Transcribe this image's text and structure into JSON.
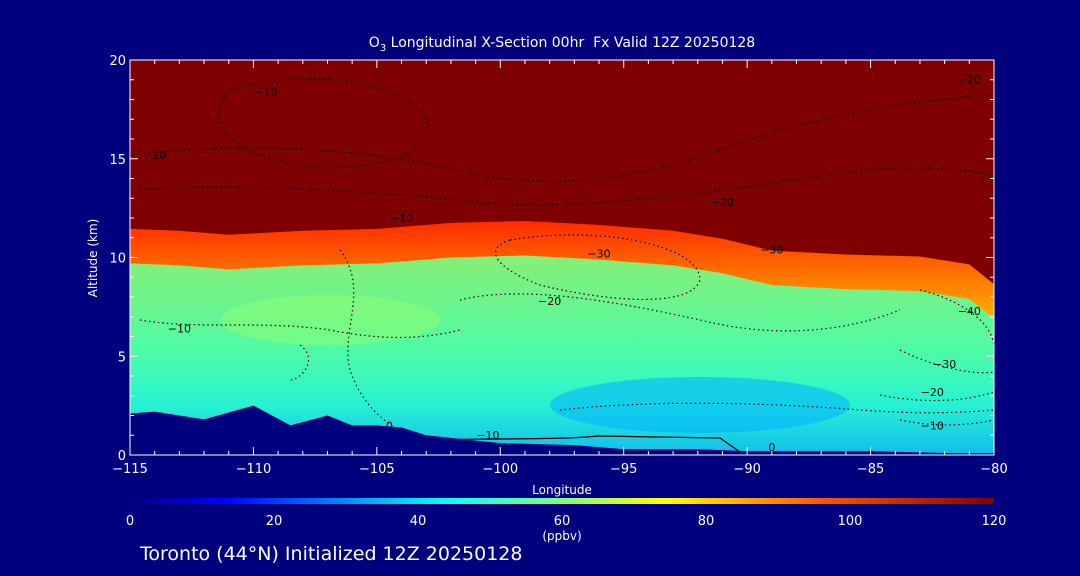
{
  "chart_data": {
    "type": "heatmap",
    "title_prefix": "O",
    "title_sub": "3",
    "title_rest": " Longitudinal X-Section 00hr  Fx Valid 12Z 20250128",
    "xlabel": "Longitude",
    "ylabel": "Altitude (km)",
    "xlim": [
      -115,
      -80
    ],
    "ylim": [
      0,
      20
    ],
    "xticks": [
      -115,
      -110,
      -105,
      -100,
      -95,
      -90,
      -85,
      -80
    ],
    "xtick_labels": [
      "−115",
      "−110",
      "−105",
      "−100",
      "−95",
      "−90",
      "−85",
      "−80"
    ],
    "yticks": [
      0,
      5,
      10,
      15,
      20
    ],
    "ytick_labels": [
      "0",
      "5",
      "10",
      "15",
      "20"
    ],
    "colorbar": {
      "min": 0,
      "max": 120,
      "ticks": [
        0,
        20,
        40,
        60,
        80,
        100,
        120
      ],
      "tick_labels": [
        "0",
        "20",
        "40",
        "60",
        "80",
        "100",
        "120"
      ],
      "label": "(ppbv)"
    },
    "tropopause_height_km": [
      [
        -115,
        11.3
      ],
      [
        -113,
        11.2
      ],
      [
        -111,
        11.0
      ],
      [
        -108,
        11.2
      ],
      [
        -105,
        11.3
      ],
      [
        -102,
        11.6
      ],
      [
        -99,
        11.7
      ],
      [
        -96,
        11.5
      ],
      [
        -93,
        11.2
      ],
      [
        -91,
        10.8
      ],
      [
        -89,
        10.2
      ],
      [
        -86,
        10.0
      ],
      [
        -83,
        9.9
      ],
      [
        -81,
        9.5
      ],
      [
        -80,
        8.5
      ]
    ],
    "terrain_km": [
      [
        -115,
        2.1
      ],
      [
        -114,
        2.2
      ],
      [
        -112,
        1.8
      ],
      [
        -110,
        2.5
      ],
      [
        -108.5,
        1.5
      ],
      [
        -107,
        2.0
      ],
      [
        -106,
        1.5
      ],
      [
        -105,
        1.5
      ],
      [
        -104,
        1.4
      ],
      [
        -103,
        1.0
      ],
      [
        -100,
        0.6
      ],
      [
        -97,
        0.5
      ],
      [
        -95,
        0.3
      ],
      [
        -92,
        0.3
      ],
      [
        -90,
        0.2
      ],
      [
        -85,
        0.2
      ],
      [
        -82,
        0.1
      ],
      [
        -80,
        0.1
      ]
    ],
    "contour_labels": [
      {
        "x": -109.5,
        "y": 18.2,
        "text": "−10"
      },
      {
        "x": -114.0,
        "y": 15.0,
        "text": "−10"
      },
      {
        "x": -81.0,
        "y": 18.8,
        "text": "−20"
      },
      {
        "x": -104.0,
        "y": 11.8,
        "text": "−10"
      },
      {
        "x": -91.0,
        "y": 12.6,
        "text": "−20"
      },
      {
        "x": -96.0,
        "y": 10.0,
        "text": "−30"
      },
      {
        "x": -89.0,
        "y": 10.2,
        "text": "−30"
      },
      {
        "x": -98.0,
        "y": 7.6,
        "text": "−20"
      },
      {
        "x": -113.0,
        "y": 6.2,
        "text": "−10"
      },
      {
        "x": -81.0,
        "y": 7.1,
        "text": "−40"
      },
      {
        "x": -82.0,
        "y": 4.4,
        "text": "−30"
      },
      {
        "x": -82.5,
        "y": 3.0,
        "text": "−20"
      },
      {
        "x": -82.5,
        "y": 1.3,
        "text": "−10"
      },
      {
        "x": -100.5,
        "y": 0.8,
        "text": "−10"
      },
      {
        "x": -104.5,
        "y": 1.3,
        "text": "0"
      },
      {
        "x": -89.0,
        "y": 0.2,
        "text": "0"
      }
    ]
  },
  "footer": {
    "caption": "Toronto (44°N) Initialized 12Z 20250128"
  }
}
